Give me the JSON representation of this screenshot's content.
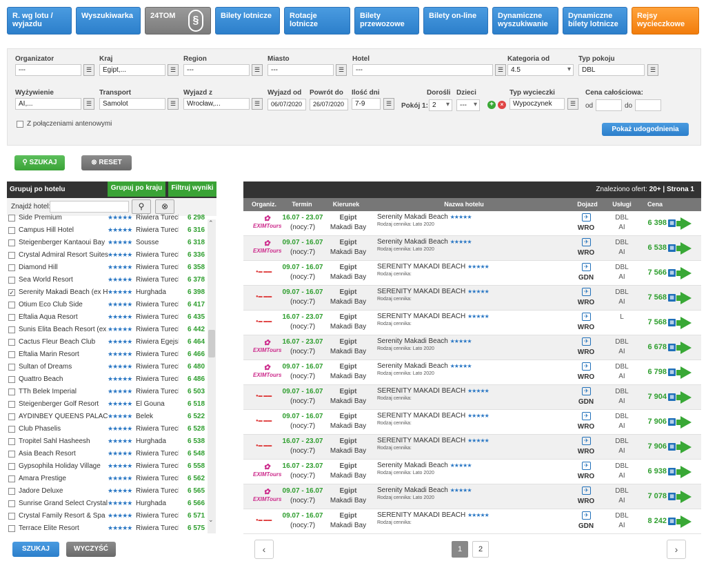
{
  "nav": [
    "R. wg lotu / wyjazdu",
    "Wyszukiwarka",
    "24TOM",
    "Bilety lotnicze",
    "Rotacje lotnicze",
    "Bilety przewozowe",
    "Bilety on-line",
    "Dynamiczne wyszukiwanie",
    "Dynamiczne bilety lotnicze",
    "Rejsy wycieczkowe"
  ],
  "filters": {
    "organizator_l": "Organizator",
    "organizator": "---",
    "kraj_l": "Kraj",
    "kraj": "Egipt,...",
    "region_l": "Region",
    "region": "---",
    "miasto_l": "Miasto",
    "miasto": "---",
    "hotel_l": "Hotel",
    "hotel": "---",
    "kategoria_l": "Kategoria od",
    "kategoria": "4.5",
    "typpokoju_l": "Typ pokoju",
    "typpokoju": "DBL",
    "wyzywienie_l": "Wyżywienie",
    "wyzywienie": "AI,...",
    "transport_l": "Transport",
    "transport": "Samolot",
    "wyjazdz_l": "Wyjazd z",
    "wyjazdz": "Wrocław,...",
    "wyjazdod_l": "Wyjazd od",
    "wyjazdod": "06/07/2020",
    "powrot_l": "Powrót do",
    "powrot": "26/07/2020",
    "ilosc_l": "Ilość dni",
    "ilosc": "7-9",
    "dorosli_l": "Dorośli",
    "dzieci_l": "Dzieci",
    "pokoj_l": "Pokój 1:",
    "dorosli": "2",
    "dzieci": "---",
    "typwyc_l": "Typ wycieczki",
    "typwyc": "Wypoczynek",
    "cena_l": "Cena całościowa:",
    "od": "od",
    "do": "do",
    "antenowe": "Z połączeniami antenowymi",
    "udogodnienia": "Pokaż udogodnienia",
    "szukaj": "SZUKAJ",
    "reset": "RESET"
  },
  "left": {
    "h1": "Grupuj po hotelu",
    "h2": "Grupuj po kraju",
    "h3": "Filtruj wyniki",
    "search_l": "Znajdź hotel:",
    "hotels": [
      [
        "Side Premium",
        "Riwiera Tureck",
        "6 298",
        false
      ],
      [
        "Campus Hill Hotel",
        "Riwiera Tureck",
        "6 316",
        false
      ],
      [
        "Steigenberger Kantaoui Bay",
        "Sousse",
        "6 318",
        false
      ],
      [
        "Crystal Admiral Resort Suites &",
        "Riwiera Tureck",
        "6 336",
        false
      ],
      [
        "Diamond Hill",
        "Riwiera Tureck",
        "6 358",
        false
      ],
      [
        "Sea World Resort",
        "Riwiera Tureck",
        "6 378",
        false
      ],
      [
        "Serenity Makadi Beach (ex Hei",
        "Hurghada",
        "6 398",
        true
      ],
      [
        "Otium Eco Club Side",
        "Riwiera Tureck",
        "6 417",
        false
      ],
      [
        "Eftalia Aqua Resort",
        "Riwiera Tureck",
        "6 435",
        false
      ],
      [
        "Sunis Elita Beach Resort (ex A",
        "Riwiera Tureck",
        "6 442",
        false
      ],
      [
        "Cactus Fleur Beach Club",
        "Riwiera Egejsk",
        "6 464",
        false
      ],
      [
        "Eftalia Marin Resort",
        "Riwiera Tureck",
        "6 466",
        false
      ],
      [
        "Sultan of Dreams",
        "Riwiera Tureck",
        "6 480",
        false
      ],
      [
        "Quattro Beach",
        "Riwiera Tureck",
        "6 486",
        false
      ],
      [
        "TTh Belek Imperial",
        "Riwiera Tureck",
        "6 503",
        false
      ],
      [
        "Steigenberger Golf Resort",
        "El Gouna",
        "6 518",
        false
      ],
      [
        "AYDINBEY QUEENS PALACE &",
        "Belek",
        "6 522",
        false
      ],
      [
        "Club Phaselis",
        "Riwiera Tureck",
        "6 528",
        false
      ],
      [
        "Tropitel Sahl Hasheesh",
        "Hurghada",
        "6 538",
        false
      ],
      [
        "Asia Beach Resort",
        "Riwiera Tureck",
        "6 548",
        false
      ],
      [
        "Gypsophila Holiday Village",
        "Riwiera Tureck",
        "6 558",
        false
      ],
      [
        "Amara Prestige",
        "Riwiera Tureck",
        "6 562",
        false
      ],
      [
        "Jadore Deluxe",
        "Riwiera Tureck",
        "6 565",
        false
      ],
      [
        "Sunrise Grand Select Crystal B",
        "Hurghada",
        "6 566",
        false
      ],
      [
        "Crystal Family Resort & Spa",
        "Riwiera Tureck",
        "6 571",
        false
      ],
      [
        "Terrace Elite Resort",
        "Riwiera Tureck",
        "6 575",
        false
      ]
    ],
    "szukaj": "SZUKAJ",
    "wyczysc": "WYCZYŚĆ"
  },
  "results": {
    "found": "Znaleziono ofert:",
    "count": "20+",
    "page": "| Strona 1",
    "cols": [
      "Organiz.",
      "Termin",
      "Kierunek",
      "Nazwa hotelu",
      "Dojazd",
      "Usługi",
      "Cena"
    ],
    "rows": [
      [
        "exim",
        "16.07 - 23.07",
        "(nocy:7)",
        "Egipt",
        "Makadi Bay",
        "Serenity Makadi Beach",
        "Rodzaj cennika: Lato 2020",
        "WRO",
        "DBL",
        "AI",
        "6 398"
      ],
      [
        "exim",
        "09.07 - 16.07",
        "(nocy:7)",
        "Egipt",
        "Makadi Bay",
        "Serenity Makadi Beach",
        "Rodzaj cennika: Lato 2020",
        "WRO",
        "DBL",
        "AI",
        "6 538"
      ],
      [
        "grecos",
        "09.07 - 16.07",
        "(nocy:7)",
        "Egipt",
        "Makadi Bay",
        "SERENITY MAKADI BEACH",
        "Rodzaj cennika:",
        "GDN",
        "DBL",
        "AI",
        "7 566"
      ],
      [
        "grecos",
        "09.07 - 16.07",
        "(nocy:7)",
        "Egipt",
        "Makadi Bay",
        "SERENITY MAKADI BEACH",
        "Rodzaj cennika:",
        "WRO",
        "DBL",
        "AI",
        "7 568"
      ],
      [
        "grecos",
        "16.07 - 23.07",
        "(nocy:7)",
        "Egipt",
        "Makadi Bay",
        "SERENITY MAKADI BEACH",
        "Rodzaj cennika:",
        "WRO",
        "L",
        "",
        "7 568"
      ],
      [
        "exim",
        "16.07 - 23.07",
        "(nocy:7)",
        "Egipt",
        "Makadi Bay",
        "Serenity Makadi Beach",
        "Rodzaj cennika: Lato 2020",
        "WRO",
        "DBL",
        "AI",
        "6 678"
      ],
      [
        "exim",
        "09.07 - 16.07",
        "(nocy:7)",
        "Egipt",
        "Makadi Bay",
        "Serenity Makadi Beach",
        "Rodzaj cennika: Lato 2020",
        "WRO",
        "DBL",
        "AI",
        "6 798"
      ],
      [
        "grecos",
        "09.07 - 16.07",
        "(nocy:7)",
        "Egipt",
        "Makadi Bay",
        "SERENITY MAKADI BEACH",
        "Rodzaj cennika:",
        "GDN",
        "DBL",
        "AI",
        "7 904"
      ],
      [
        "grecos",
        "09.07 - 16.07",
        "(nocy:7)",
        "Egipt",
        "Makadi Bay",
        "SERENITY MAKADI BEACH",
        "Rodzaj cennika:",
        "WRO",
        "DBL",
        "AI",
        "7 906"
      ],
      [
        "grecos",
        "16.07 - 23.07",
        "(nocy:7)",
        "Egipt",
        "Makadi Bay",
        "SERENITY MAKADI BEACH",
        "Rodzaj cennika:",
        "WRO",
        "DBL",
        "AI",
        "7 906"
      ],
      [
        "exim",
        "16.07 - 23.07",
        "(nocy:7)",
        "Egipt",
        "Makadi Bay",
        "Serenity Makadi Beach",
        "Rodzaj cennika: Lato 2020",
        "WRO",
        "DBL",
        "AI",
        "6 938"
      ],
      [
        "exim",
        "09.07 - 16.07",
        "(nocy:7)",
        "Egipt",
        "Makadi Bay",
        "Serenity Makadi Beach",
        "Rodzaj cennika: Lato 2020",
        "WRO",
        "DBL",
        "AI",
        "7 078"
      ],
      [
        "grecos",
        "09.07 - 16.07",
        "(nocy:7)",
        "Egipt",
        "Makadi Bay",
        "SERENITY MAKADI BEACH",
        "Rodzaj cennika:",
        "GDN",
        "DBL",
        "AI",
        "8 242"
      ]
    ],
    "pages": [
      "1",
      "2"
    ],
    "exim_logo": "EXIMTours"
  }
}
